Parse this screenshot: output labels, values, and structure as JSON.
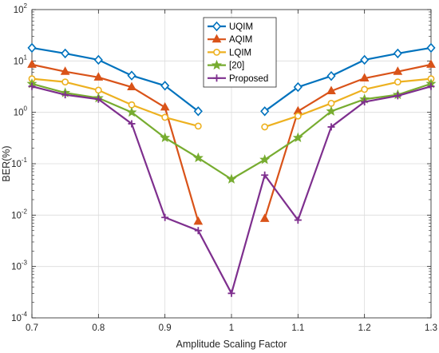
{
  "chart_data": {
    "type": "line",
    "title": "",
    "xlabel": "Amplitude Scaling Factor",
    "ylabel": "BER(%)",
    "x_scale": "linear",
    "y_scale": "log",
    "xlim": [
      0.7,
      1.3
    ],
    "ylim": [
      0.0001,
      100
    ],
    "x_ticks": [
      "0.7",
      "0.8",
      "0.9",
      "1",
      "1.1",
      "1.2",
      "1.3"
    ],
    "y_ticks": [
      {
        "base": "10",
        "exp": "2"
      },
      {
        "base": "10",
        "exp": "1"
      },
      {
        "base": "10",
        "exp": "0"
      },
      {
        "base": "10",
        "exp": "-1"
      },
      {
        "base": "10",
        "exp": "-2"
      },
      {
        "base": "10",
        "exp": "-3"
      },
      {
        "base": "10",
        "exp": "-4"
      }
    ],
    "grid": true,
    "legend_position": "top-center",
    "series": [
      {
        "name": "UQIM",
        "color": "#0072bd",
        "marker": "diamond",
        "segments": [
          [
            [
              0.7,
              18
            ],
            [
              0.75,
              14
            ],
            [
              0.8,
              10.5
            ],
            [
              0.85,
              5.2
            ],
            [
              0.9,
              3.3
            ],
            [
              0.95,
              1.05
            ]
          ],
          [
            [
              1.05,
              1.05
            ],
            [
              1.1,
              3.1
            ],
            [
              1.15,
              5.1
            ],
            [
              1.2,
              10.5
            ],
            [
              1.25,
              14
            ],
            [
              1.3,
              18
            ]
          ]
        ]
      },
      {
        "name": "AQIM",
        "color": "#d95319",
        "marker": "triangle",
        "segments": [
          [
            [
              0.7,
              8.5
            ],
            [
              0.75,
              6.2
            ],
            [
              0.8,
              4.8
            ],
            [
              0.85,
              3.1
            ],
            [
              0.9,
              1.25
            ],
            [
              0.95,
              0.0075
            ]
          ],
          [
            [
              1.05,
              0.0085
            ],
            [
              1.1,
              1.05
            ],
            [
              1.15,
              2.6
            ],
            [
              1.2,
              4.6
            ],
            [
              1.25,
              6.2
            ],
            [
              1.3,
              8.5
            ]
          ]
        ]
      },
      {
        "name": "LQIM",
        "color": "#edb120",
        "marker": "circle",
        "segments": [
          [
            [
              0.7,
              4.5
            ],
            [
              0.75,
              3.9
            ],
            [
              0.8,
              2.7
            ],
            [
              0.85,
              1.4
            ],
            [
              0.9,
              0.8
            ],
            [
              0.95,
              0.54
            ]
          ],
          [
            [
              1.05,
              0.52
            ],
            [
              1.1,
              0.85
            ],
            [
              1.15,
              1.5
            ],
            [
              1.2,
              2.8
            ],
            [
              1.25,
              3.9
            ],
            [
              1.3,
              4.5
            ]
          ]
        ]
      },
      {
        "name": "[20]",
        "color": "#77ac30",
        "marker": "star",
        "segments": [
          [
            [
              0.7,
              3.6
            ],
            [
              0.75,
              2.4
            ],
            [
              0.8,
              1.9
            ],
            [
              0.85,
              1.0
            ],
            [
              0.9,
              0.32
            ],
            [
              0.95,
              0.13
            ],
            [
              1.0,
              0.05
            ],
            [
              1.05,
              0.12
            ],
            [
              1.1,
              0.32
            ],
            [
              1.15,
              1.05
            ],
            [
              1.2,
              1.8
            ],
            [
              1.25,
              2.2
            ],
            [
              1.3,
              3.6
            ]
          ]
        ]
      },
      {
        "name": "Proposed",
        "color": "#7e2f8e",
        "marker": "plus",
        "segments": [
          [
            [
              0.7,
              3.2
            ],
            [
              0.75,
              2.2
            ],
            [
              0.8,
              1.8
            ],
            [
              0.85,
              0.6
            ],
            [
              0.9,
              0.009
            ],
            [
              0.95,
              0.005
            ],
            [
              1.0,
              0.0003
            ],
            [
              1.05,
              0.06
            ],
            [
              1.1,
              0.008
            ],
            [
              1.15,
              0.52
            ],
            [
              1.2,
              1.6
            ],
            [
              1.25,
              2.1
            ],
            [
              1.3,
              3.2
            ]
          ]
        ]
      }
    ]
  }
}
